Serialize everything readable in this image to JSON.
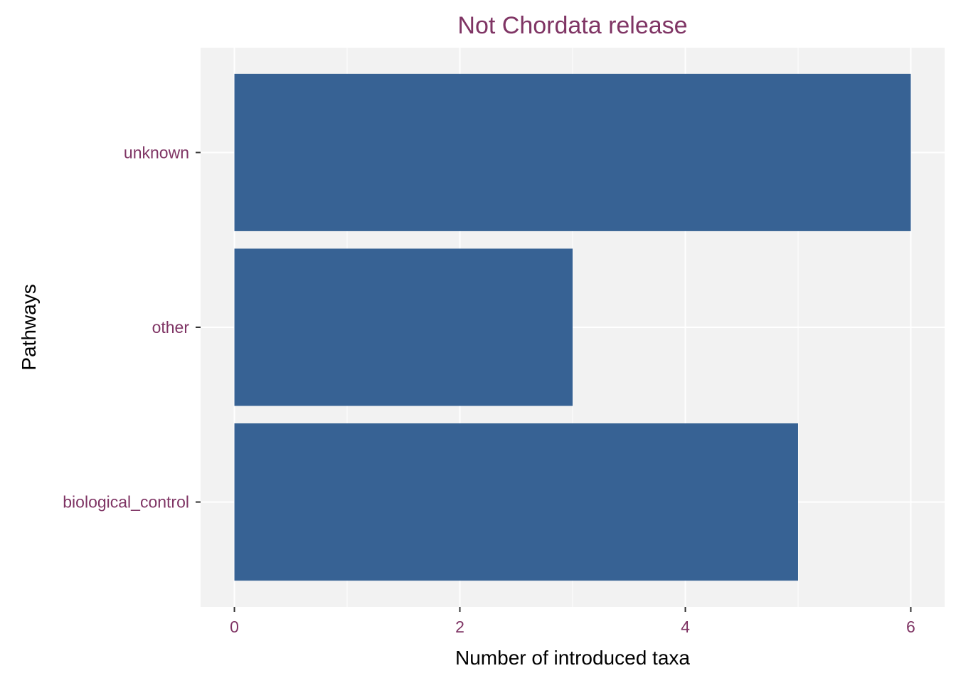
{
  "chart_data": {
    "type": "bar",
    "orientation": "horizontal",
    "title": "Not Chordata release",
    "xlabel": "Number of introduced taxa",
    "ylabel": "Pathways",
    "categories": [
      "biological_control",
      "other",
      "unknown"
    ],
    "values": [
      5,
      3,
      6
    ],
    "xlim": [
      -0.3,
      6.3
    ],
    "x_ticks": [
      0,
      2,
      4,
      6
    ],
    "grid": true,
    "legend": "none",
    "colors": {
      "bar": "#376294",
      "panel_background": "#f2f2f2",
      "grid": "#ffffff",
      "title": "#7f3464",
      "tick_labels": "#7f3464",
      "axis_titles": "#000000"
    }
  }
}
